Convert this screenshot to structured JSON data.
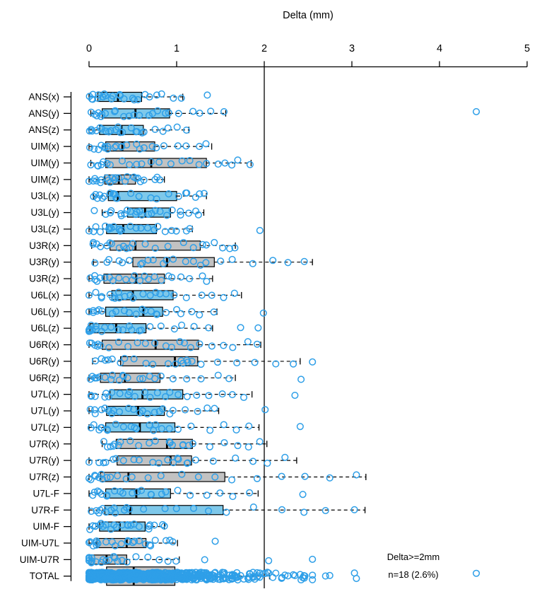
{
  "title": "Delta (mm)",
  "annotation": {
    "line1": "Delta>=2mm",
    "line2": "n=18 (2.6%)"
  },
  "colors": {
    "box_blue": "#7ec8ea",
    "box_gray": "#c2c2c2",
    "point_stroke": "#2e9fe8",
    "axis_line": "#000000"
  },
  "chart_data": {
    "type": "boxplot",
    "orientation": "horizontal",
    "title": "Delta (mm)",
    "xlabel": "Delta (mm)",
    "xlim": [
      0,
      5
    ],
    "x_ticks": [
      0,
      1,
      2,
      3,
      4,
      5
    ],
    "grid": false,
    "reference_line_value": 2,
    "annotation_line1": "Delta>=2mm",
    "annotation_line2": "n=18 (2.6%)",
    "points_per_row": 23,
    "rows": [
      {
        "label": "ANS(x)",
        "color": "blue",
        "whisker_low": 0.0,
        "q1": 0.1,
        "median": 0.33,
        "q3": 0.6,
        "whisker_high": 1.07,
        "outliers": [
          1.35
        ]
      },
      {
        "label": "ANS(y)",
        "color": "blue",
        "whisker_low": 0.02,
        "q1": 0.15,
        "median": 0.53,
        "q3": 0.92,
        "whisker_high": 1.56,
        "outliers": [
          4.42
        ]
      },
      {
        "label": "ANS(z)",
        "color": "blue",
        "whisker_low": 0.0,
        "q1": 0.12,
        "median": 0.37,
        "q3": 0.62,
        "whisker_high": 1.14,
        "outliers": []
      },
      {
        "label": "UIM(x)",
        "color": "gray",
        "whisker_low": 0.0,
        "q1": 0.19,
        "median": 0.38,
        "q3": 0.75,
        "whisker_high": 1.4,
        "outliers": []
      },
      {
        "label": "UIM(y)",
        "color": "gray",
        "whisker_low": 0.02,
        "q1": 0.19,
        "median": 0.71,
        "q3": 1.34,
        "whisker_high": 1.85,
        "outliers": []
      },
      {
        "label": "UIM(z)",
        "color": "gray",
        "whisker_low": 0.0,
        "q1": 0.18,
        "median": 0.34,
        "q3": 0.53,
        "whisker_high": 0.86,
        "outliers": []
      },
      {
        "label": "U3L(x)",
        "color": "blue",
        "whisker_low": 0.05,
        "q1": 0.22,
        "median": 0.33,
        "q3": 1.0,
        "whisker_high": 1.34,
        "outliers": []
      },
      {
        "label": "U3L(y)",
        "color": "blue",
        "whisker_low": 0.15,
        "q1": 0.44,
        "median": 0.64,
        "q3": 0.93,
        "whisker_high": 1.31,
        "outliers": [
          0.06
        ]
      },
      {
        "label": "U3L(z)",
        "color": "blue",
        "whisker_low": 0.0,
        "q1": 0.2,
        "median": 0.39,
        "q3": 0.77,
        "whisker_high": 1.18,
        "outliers": [
          1.95
        ]
      },
      {
        "label": "U3R(x)",
        "color": "gray",
        "whisker_low": 0.03,
        "q1": 0.24,
        "median": 0.53,
        "q3": 1.27,
        "whisker_high": 1.67,
        "outliers": []
      },
      {
        "label": "U3R(y)",
        "color": "gray",
        "whisker_low": 0.05,
        "q1": 0.5,
        "median": 0.89,
        "q3": 1.43,
        "whisker_high": 2.55,
        "outliers": []
      },
      {
        "label": "U3R(z)",
        "color": "gray",
        "whisker_low": 0.0,
        "q1": 0.17,
        "median": 0.54,
        "q3": 0.86,
        "whisker_high": 1.41,
        "outliers": []
      },
      {
        "label": "U6L(x)",
        "color": "blue",
        "whisker_low": 0.0,
        "q1": 0.26,
        "median": 0.5,
        "q3": 0.96,
        "whisker_high": 1.74,
        "outliers": []
      },
      {
        "label": "U6L(y)",
        "color": "blue",
        "whisker_low": 0.0,
        "q1": 0.19,
        "median": 0.62,
        "q3": 0.84,
        "whisker_high": 1.46,
        "outliers": [
          1.99
        ]
      },
      {
        "label": "U6L(z)",
        "color": "blue",
        "whisker_low": 0.0,
        "q1": 0.01,
        "median": 0.31,
        "q3": 0.65,
        "whisker_high": 1.41,
        "outliers": [
          1.73,
          1.93
        ]
      },
      {
        "label": "U6R(x)",
        "color": "gray",
        "whisker_low": 0.0,
        "q1": 0.15,
        "median": 0.76,
        "q3": 1.25,
        "whisker_high": 1.96,
        "outliers": []
      },
      {
        "label": "U6R(y)",
        "color": "gray",
        "whisker_low": 0.04,
        "q1": 0.36,
        "median": 0.98,
        "q3": 1.24,
        "whisker_high": 2.41,
        "outliers": [
          2.55
        ]
      },
      {
        "label": "U6R(z)",
        "color": "gray",
        "whisker_low": 0.0,
        "q1": 0.13,
        "median": 0.41,
        "q3": 0.81,
        "whisker_high": 1.67,
        "outliers": [
          2.42
        ]
      },
      {
        "label": "U7L(x)",
        "color": "blue",
        "whisker_low": 0.0,
        "q1": 0.24,
        "median": 0.61,
        "q3": 1.07,
        "whisker_high": 1.86,
        "outliers": [
          2.35
        ]
      },
      {
        "label": "U7L(y)",
        "color": "blue",
        "whisker_low": 0.0,
        "q1": 0.2,
        "median": 0.56,
        "q3": 0.86,
        "whisker_high": 1.48,
        "outliers": [
          2.01
        ]
      },
      {
        "label": "U7L(z)",
        "color": "blue",
        "whisker_low": 0.0,
        "q1": 0.19,
        "median": 0.58,
        "q3": 0.98,
        "whisker_high": 1.94,
        "outliers": [
          2.41
        ]
      },
      {
        "label": "U7R(x)",
        "color": "gray",
        "whisker_low": 0.15,
        "q1": 0.31,
        "median": 0.89,
        "q3": 1.18,
        "whisker_high": 2.03,
        "outliers": []
      },
      {
        "label": "U7R(y)",
        "color": "gray",
        "whisker_low": 0.0,
        "q1": 0.32,
        "median": 0.93,
        "q3": 1.17,
        "whisker_high": 2.37,
        "outliers": []
      },
      {
        "label": "U7R(z)",
        "color": "gray",
        "whisker_low": 0.0,
        "q1": 0.13,
        "median": 0.45,
        "q3": 1.55,
        "whisker_high": 3.16,
        "outliers": []
      },
      {
        "label": "U7L-F",
        "color": "blue",
        "whisker_low": 0.0,
        "q1": 0.19,
        "median": 0.54,
        "q3": 0.93,
        "whisker_high": 1.93,
        "outliers": [
          2.44
        ]
      },
      {
        "label": "U7R-F",
        "color": "blue",
        "whisker_low": 0.0,
        "q1": 0.18,
        "median": 0.47,
        "q3": 1.53,
        "whisker_high": 3.15,
        "outliers": []
      },
      {
        "label": "UIM-F",
        "color": "blue",
        "whisker_low": 0.0,
        "q1": 0.12,
        "median": 0.35,
        "q3": 0.64,
        "whisker_high": 0.86,
        "outliers": []
      },
      {
        "label": "UIM-U7L",
        "color": "gray",
        "whisker_low": 0.0,
        "q1": 0.09,
        "median": 0.43,
        "q3": 0.65,
        "whisker_high": 1.01,
        "outliers": [
          1.44
        ]
      },
      {
        "label": "UIM-U7R",
        "color": "gray",
        "whisker_low": 0.0,
        "q1": 0.0,
        "median": 0.2,
        "q3": 0.43,
        "whisker_high": 1.03,
        "outliers": [
          1.32,
          2.05,
          2.55
        ]
      },
      {
        "label": "TOTAL",
        "color": "gray",
        "whisker_low": 0.0,
        "q1": 0.2,
        "median": 0.51,
        "q3": 0.98,
        "whisker_high": 2.06,
        "outliers": [],
        "is_total": true
      }
    ]
  }
}
